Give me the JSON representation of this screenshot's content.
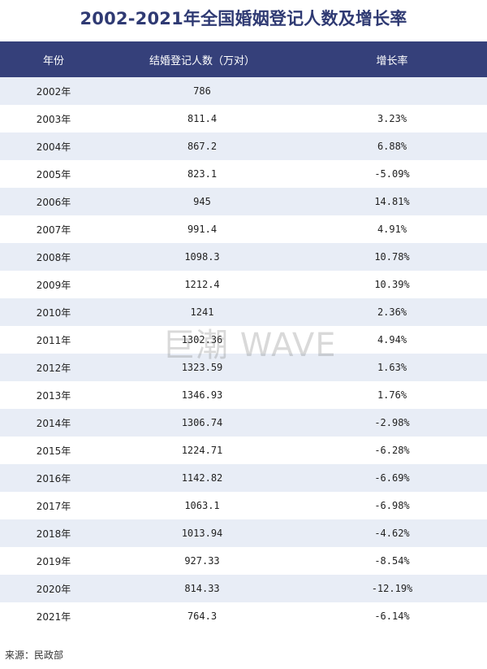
{
  "title": "2002-2021年全国婚姻登记人数及增长率",
  "table": {
    "headers": {
      "year": "年份",
      "count": "结婚登记人数（万对）",
      "growth": "增长率"
    },
    "rows": [
      {
        "year": "2002年",
        "count": "786",
        "growth": ""
      },
      {
        "year": "2003年",
        "count": "811.4",
        "growth": "3.23%"
      },
      {
        "year": "2004年",
        "count": "867.2",
        "growth": "6.88%"
      },
      {
        "year": "2005年",
        "count": "823.1",
        "growth": "-5.09%"
      },
      {
        "year": "2006年",
        "count": "945",
        "growth": "14.81%"
      },
      {
        "year": "2007年",
        "count": "991.4",
        "growth": "4.91%"
      },
      {
        "year": "2008年",
        "count": "1098.3",
        "growth": "10.78%"
      },
      {
        "year": "2009年",
        "count": "1212.4",
        "growth": "10.39%"
      },
      {
        "year": "2010年",
        "count": "1241",
        "growth": "2.36%"
      },
      {
        "year": "2011年",
        "count": "1302.36",
        "growth": "4.94%"
      },
      {
        "year": "2012年",
        "count": "1323.59",
        "growth": "1.63%"
      },
      {
        "year": "2013年",
        "count": "1346.93",
        "growth": "1.76%"
      },
      {
        "year": "2014年",
        "count": "1306.74",
        "growth": "-2.98%"
      },
      {
        "year": "2015年",
        "count": "1224.71",
        "growth": "-6.28%"
      },
      {
        "year": "2016年",
        "count": "1142.82",
        "growth": "-6.69%"
      },
      {
        "year": "2017年",
        "count": "1063.1",
        "growth": "-6.98%"
      },
      {
        "year": "2018年",
        "count": "1013.94",
        "growth": "-4.62%"
      },
      {
        "year": "2019年",
        "count": "927.33",
        "growth": "-8.54%"
      },
      {
        "year": "2020年",
        "count": "814.33",
        "growth": "-12.19%"
      },
      {
        "year": "2021年",
        "count": "764.3",
        "growth": "-6.14%"
      }
    ]
  },
  "watermark": "巨潮 WAVE",
  "source": "来源：民政部",
  "colors": {
    "title": "#2f3a73",
    "header_background": "#35407a",
    "stripe": "#e8edf6"
  }
}
